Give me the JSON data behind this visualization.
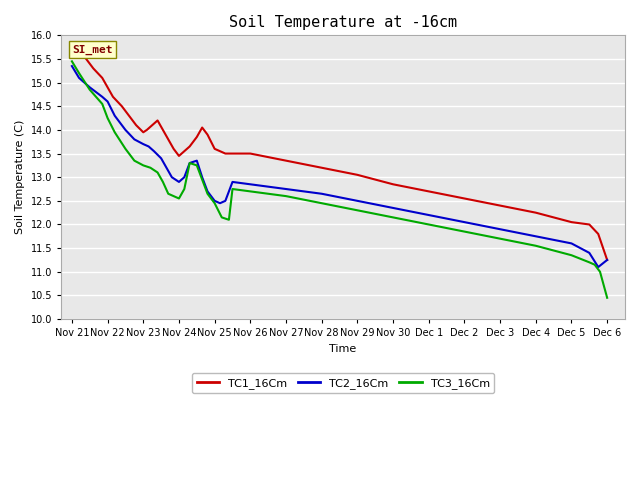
{
  "title": "Soil Temperature at -16cm",
  "xlabel": "Time",
  "ylabel": "Soil Temperature (C)",
  "ylim": [
    10.0,
    16.0
  ],
  "yticks": [
    10.0,
    10.5,
    11.0,
    11.5,
    12.0,
    12.5,
    13.0,
    13.5,
    14.0,
    14.5,
    15.0,
    15.5,
    16.0
  ],
  "xtick_labels": [
    "Nov 21",
    "Nov 22",
    "Nov 23",
    "Nov 24",
    "Nov 25",
    "Nov 26",
    "Nov 27",
    "Nov 28",
    "Nov 29",
    "Nov 30",
    "Dec 1",
    "Dec 2",
    "Dec 3",
    "Dec 4",
    "Dec 5",
    "Dec 6"
  ],
  "annotation_text": "SI_met",
  "series": {
    "TC1_16Cm": {
      "color": "#cc0000",
      "x": [
        0,
        0.15,
        0.35,
        0.6,
        0.85,
        1.0,
        1.15,
        1.4,
        1.6,
        1.8,
        2.0,
        2.1,
        2.25,
        2.4,
        2.55,
        2.7,
        2.85,
        3.0,
        3.15,
        3.3,
        3.5,
        3.65,
        3.8,
        4.0,
        4.15,
        4.3,
        4.5,
        5.0,
        6.0,
        7.0,
        8.0,
        9.0,
        10.0,
        11.0,
        12.0,
        13.0,
        14.0,
        14.5,
        14.75,
        15.0
      ],
      "y": [
        15.8,
        15.7,
        15.55,
        15.3,
        15.1,
        14.9,
        14.7,
        14.5,
        14.3,
        14.1,
        13.95,
        14.0,
        14.1,
        14.2,
        14.0,
        13.8,
        13.6,
        13.45,
        13.55,
        13.65,
        13.85,
        14.05,
        13.9,
        13.6,
        13.55,
        13.5,
        13.5,
        13.5,
        13.35,
        13.2,
        13.05,
        12.85,
        12.7,
        12.55,
        12.4,
        12.25,
        12.05,
        12.0,
        11.8,
        11.25
      ]
    },
    "TC2_16Cm": {
      "color": "#0000cc",
      "x": [
        0,
        0.2,
        0.5,
        0.85,
        1.0,
        1.2,
        1.5,
        1.75,
        2.0,
        2.15,
        2.3,
        2.5,
        2.65,
        2.8,
        3.0,
        3.15,
        3.3,
        3.5,
        3.65,
        3.8,
        4.0,
        4.15,
        4.3,
        4.5,
        5.0,
        6.0,
        7.0,
        8.0,
        9.0,
        10.0,
        11.0,
        12.0,
        13.0,
        14.0,
        14.5,
        14.75,
        15.0
      ],
      "y": [
        15.35,
        15.1,
        14.9,
        14.7,
        14.6,
        14.3,
        14.0,
        13.8,
        13.7,
        13.65,
        13.55,
        13.4,
        13.2,
        13.0,
        12.9,
        13.0,
        13.3,
        13.35,
        13.0,
        12.7,
        12.5,
        12.45,
        12.5,
        12.9,
        12.85,
        12.75,
        12.65,
        12.5,
        12.35,
        12.2,
        12.05,
        11.9,
        11.75,
        11.6,
        11.4,
        11.1,
        11.25
      ]
    },
    "TC3_16Cm": {
      "color": "#00aa00",
      "x": [
        0,
        0.2,
        0.5,
        0.85,
        1.0,
        1.2,
        1.5,
        1.75,
        2.0,
        2.2,
        2.4,
        2.55,
        2.7,
        2.85,
        3.0,
        3.15,
        3.3,
        3.5,
        3.65,
        3.8,
        4.0,
        4.2,
        4.4,
        4.5,
        5.0,
        6.0,
        7.0,
        8.0,
        9.0,
        10.0,
        11.0,
        12.0,
        13.0,
        14.0,
        14.5,
        14.65,
        14.8,
        15.0
      ],
      "y": [
        15.45,
        15.2,
        14.85,
        14.55,
        14.25,
        13.95,
        13.6,
        13.35,
        13.25,
        13.2,
        13.1,
        12.9,
        12.65,
        12.6,
        12.55,
        12.75,
        13.3,
        13.25,
        12.95,
        12.65,
        12.45,
        12.15,
        12.1,
        12.75,
        12.7,
        12.6,
        12.45,
        12.3,
        12.15,
        12.0,
        11.85,
        11.7,
        11.55,
        11.35,
        11.2,
        11.15,
        11.0,
        10.45
      ]
    }
  },
  "plot_bg_color": "#e8e8e8",
  "fig_bg_color": "#ffffff",
  "grid_color": "#ffffff",
  "legend_entries": [
    "TC1_16Cm",
    "TC2_16Cm",
    "TC3_16Cm"
  ],
  "legend_colors": [
    "#cc0000",
    "#0000cc",
    "#00aa00"
  ]
}
